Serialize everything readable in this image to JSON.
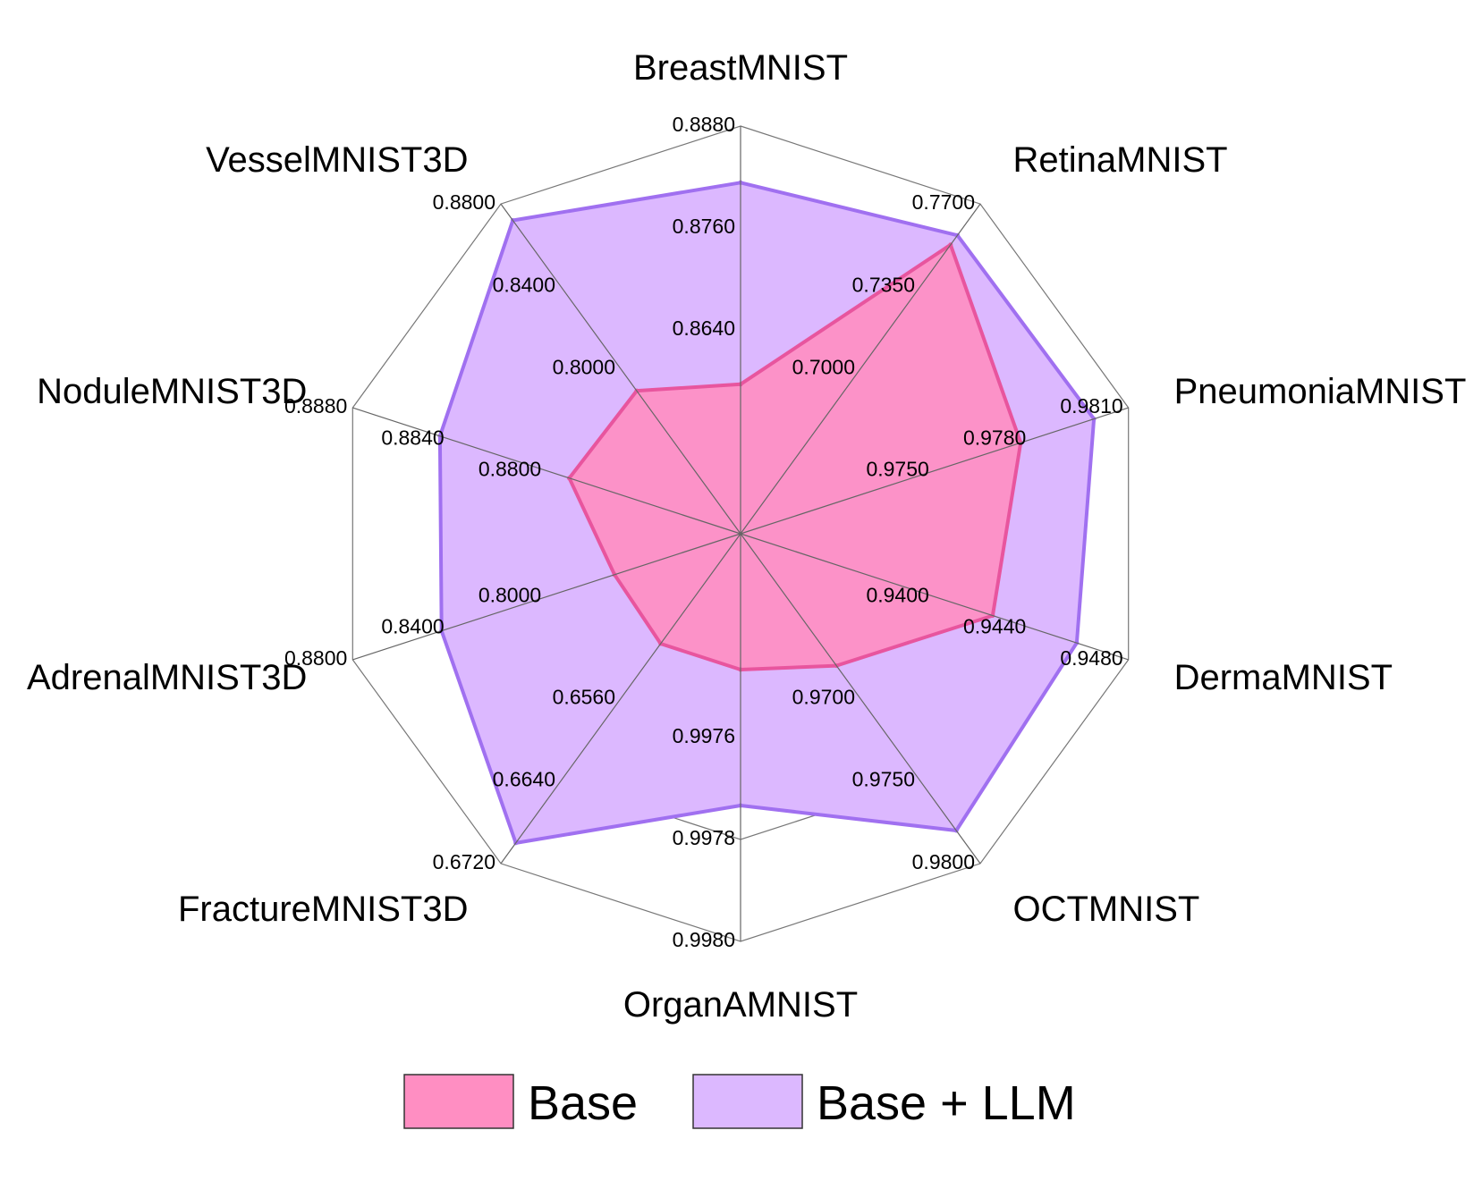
{
  "chart_data": {
    "type": "radar",
    "axes": [
      {
        "name": "BreastMNIST",
        "min": 0.852,
        "max": 0.888,
        "ticks": [
          "0.8640",
          "0.8760",
          "0.8880"
        ]
      },
      {
        "name": "RetinaMNIST",
        "min": 0.665,
        "max": 0.77,
        "ticks": [
          "0.7000",
          "0.7350",
          "0.7700"
        ]
      },
      {
        "name": "PneumoniaMNIST",
        "min": 0.972,
        "max": 0.981,
        "ticks": [
          "0.9750",
          "0.9780",
          "0.9810"
        ]
      },
      {
        "name": "DermaMNIST",
        "min": 0.936,
        "max": 0.948,
        "ticks": [
          "0.9400",
          "0.9440",
          "0.9480"
        ]
      },
      {
        "name": "OCTMNIST",
        "min": 0.965,
        "max": 0.98,
        "ticks": [
          "0.9700",
          "0.9750",
          "0.9800"
        ]
      },
      {
        "name": "OrganAMNIST",
        "min": 0.9974,
        "max": 0.998,
        "ticks": [
          "0.9976",
          "0.9978",
          "0.9980"
        ]
      },
      {
        "name": "FractureMNIST3D",
        "min": 0.648,
        "max": 0.672,
        "ticks": [
          "0.6560",
          "0.6640",
          "0.6720"
        ]
      },
      {
        "name": "AdrenalMNIST3D",
        "min": 0.76,
        "max": 0.88,
        "ticks": [
          "0.8000",
          "0.8400",
          "0.8800"
        ]
      },
      {
        "name": "NoduleMNIST3D",
        "min": 0.876,
        "max": 0.888,
        "ticks": [
          "0.8800",
          "0.8840",
          "0.8880"
        ]
      },
      {
        "name": "VesselMNIST3D",
        "min": 0.76,
        "max": 0.88,
        "ticks": [
          "0.8000",
          "0.8400",
          "0.8800"
        ]
      }
    ],
    "series": [
      {
        "name": "Base",
        "values": [
          0.8652,
          0.757,
          0.9785,
          0.9438,
          0.971,
          0.9976,
          0.656,
          0.799,
          0.8813,
          0.812
        ],
        "fill": "#ff8ec2",
        "stroke": "#e8559e"
      },
      {
        "name": "Base + LLM",
        "values": [
          0.883,
          0.76,
          0.9802,
          0.9464,
          0.9785,
          0.9978,
          0.6705,
          0.8525,
          0.8853,
          0.874
        ],
        "fill": "#dcb8ff",
        "stroke": "#a070f0"
      }
    ],
    "legend_position": "bottom",
    "grid": true
  }
}
